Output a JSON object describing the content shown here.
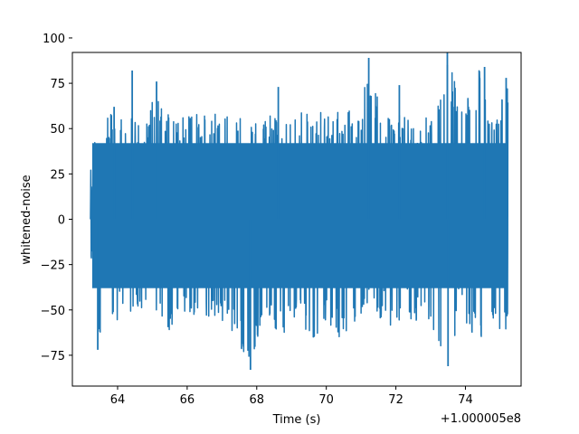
{
  "chart_data": {
    "type": "line",
    "title": "",
    "xlabel": "Time (s)",
    "ylabel": "whitened-noise",
    "x_offset_label": "+1.000005e8",
    "xlim": [
      62.7,
      75.6
    ],
    "ylim": [
      -92,
      92
    ],
    "x_ticks": [
      64,
      66,
      68,
      70,
      72,
      74
    ],
    "y_ticks": [
      -75,
      -50,
      -25,
      0,
      25,
      50,
      75,
      100
    ],
    "grid": false,
    "legend": "none",
    "color": "#1f77b4",
    "series": [
      {
        "x_start": 63.22,
        "x_end": 75.22,
        "envelope": [
          {
            "x": 63.2,
            "ymin": -35,
            "ymax": 20
          },
          {
            "x": 63.4,
            "ymin": -72,
            "ymax": 58
          },
          {
            "x": 63.6,
            "ymin": -60,
            "ymax": 52
          },
          {
            "x": 63.9,
            "ymin": -64,
            "ymax": 62
          },
          {
            "x": 64.1,
            "ymin": -50,
            "ymax": 58
          },
          {
            "x": 64.5,
            "ymin": -55,
            "ymax": 55
          },
          {
            "x": 64.9,
            "ymin": -48,
            "ymax": 56
          },
          {
            "x": 65.1,
            "ymin": -58,
            "ymax": 76
          },
          {
            "x": 65.5,
            "ymin": -62,
            "ymax": 58
          },
          {
            "x": 65.9,
            "ymin": -52,
            "ymax": 57
          },
          {
            "x": 66.3,
            "ymin": -56,
            "ymax": 58
          },
          {
            "x": 66.8,
            "ymin": -55,
            "ymax": 60
          },
          {
            "x": 67.3,
            "ymin": -62,
            "ymax": 57
          },
          {
            "x": 67.8,
            "ymin": -83,
            "ymax": 58
          },
          {
            "x": 68.2,
            "ymin": -52,
            "ymax": 58
          },
          {
            "x": 68.7,
            "ymin": -65,
            "ymax": 56
          },
          {
            "x": 69.2,
            "ymin": -55,
            "ymax": 58
          },
          {
            "x": 69.6,
            "ymin": -68,
            "ymax": 62
          },
          {
            "x": 70.0,
            "ymin": -55,
            "ymax": 58
          },
          {
            "x": 70.5,
            "ymin": -70,
            "ymax": 60
          },
          {
            "x": 71.0,
            "ymin": -55,
            "ymax": 60
          },
          {
            "x": 71.2,
            "ymin": -50,
            "ymax": 89
          },
          {
            "x": 71.6,
            "ymin": -55,
            "ymax": 60
          },
          {
            "x": 72.0,
            "ymin": -62,
            "ymax": 58
          },
          {
            "x": 72.5,
            "ymin": -55,
            "ymax": 55
          },
          {
            "x": 73.0,
            "ymin": -60,
            "ymax": 58
          },
          {
            "x": 73.5,
            "ymin": -81,
            "ymax": 92
          },
          {
            "x": 73.9,
            "ymin": -55,
            "ymax": 60
          },
          {
            "x": 74.4,
            "ymin": -68,
            "ymax": 84
          },
          {
            "x": 74.8,
            "ymin": -60,
            "ymax": 60
          },
          {
            "x": 75.2,
            "ymin": -63,
            "ymax": 78
          }
        ],
        "spikes": [
          {
            "x": 63.43,
            "y": -72
          },
          {
            "x": 63.9,
            "y": 62
          },
          {
            "x": 64.42,
            "y": 82
          },
          {
            "x": 65.12,
            "y": 76
          },
          {
            "x": 67.82,
            "y": -83
          },
          {
            "x": 68.62,
            "y": 73
          },
          {
            "x": 71.22,
            "y": 89
          },
          {
            "x": 72.1,
            "y": 74
          },
          {
            "x": 73.48,
            "y": 92
          },
          {
            "x": 73.5,
            "y": -81
          },
          {
            "x": 74.55,
            "y": 84
          },
          {
            "x": 75.17,
            "y": 78
          }
        ]
      }
    ]
  }
}
